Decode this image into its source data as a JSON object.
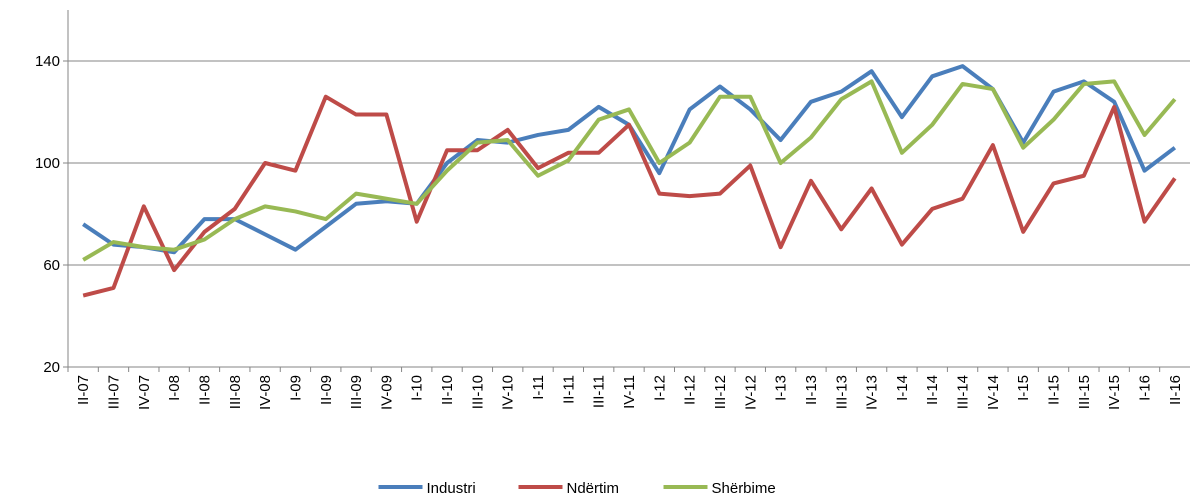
{
  "chart_data": {
    "type": "line",
    "categories": [
      "II-07",
      "III-07",
      "IV-07",
      "I-08",
      "II-08",
      "III-08",
      "IV-08",
      "I-09",
      "II-09",
      "III-09",
      "IV-09",
      "I-10",
      "II-10",
      "III-10",
      "IV-10",
      "I-11",
      "II-11",
      "III-11",
      "IV-11",
      "I-12",
      "II-12",
      "III-12",
      "IV-12",
      "I-13",
      "II-13",
      "III-13",
      "IV-13",
      "I-14",
      "II-14",
      "III-14",
      "IV-14",
      "I-15",
      "II-15",
      "III-15",
      "IV-15",
      "I-16",
      "II-16"
    ],
    "series": [
      {
        "name": "Industri",
        "color": "#4a7ebb",
        "values": [
          76,
          68,
          67,
          65,
          78,
          78,
          72,
          66,
          75,
          84,
          85,
          84,
          100,
          109,
          108,
          111,
          113,
          122,
          115,
          96,
          121,
          130,
          121,
          109,
          124,
          128,
          136,
          118,
          134,
          138,
          129,
          108,
          128,
          132,
          124,
          97,
          106
        ]
      },
      {
        "name": "Ndërtim",
        "color": "#be4b48",
        "values": [
          48,
          51,
          83,
          58,
          73,
          82,
          100,
          97,
          126,
          119,
          119,
          77,
          105,
          105,
          113,
          98,
          104,
          104,
          115,
          88,
          87,
          88,
          99,
          67,
          93,
          74,
          90,
          68,
          82,
          86,
          107,
          73,
          92,
          95,
          122,
          77,
          94
        ]
      },
      {
        "name": "Shërbime",
        "color": "#98b954",
        "values": [
          62,
          69,
          67,
          66,
          70,
          78,
          83,
          81,
          78,
          88,
          86,
          84,
          97,
          108,
          109,
          95,
          101,
          117,
          121,
          100,
          108,
          126,
          126,
          100,
          110,
          125,
          132,
          104,
          115,
          131,
          129,
          106,
          117,
          131,
          132,
          111,
          125
        ]
      }
    ],
    "ylim": [
      20,
      160
    ],
    "yticks": [
      20,
      60,
      100,
      140
    ],
    "grid": true,
    "legend": "bottom"
  }
}
